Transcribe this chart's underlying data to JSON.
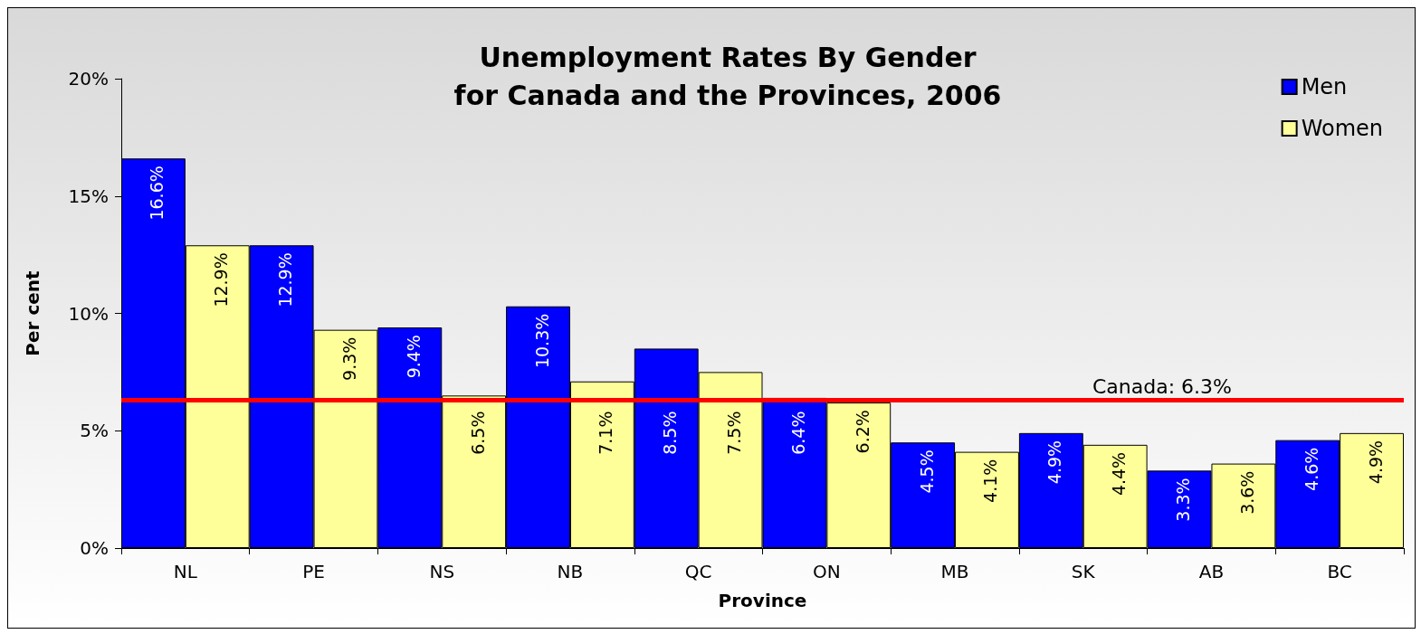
{
  "chart_data": {
    "type": "bar",
    "title": "Unemployment Rates By Gender\nfor Canada and the Provinces, 2006",
    "xlabel": "Province",
    "ylabel": "Per cent",
    "categories": [
      "NL",
      "PE",
      "NS",
      "NB",
      "QC",
      "ON",
      "MB",
      "SK",
      "AB",
      "BC"
    ],
    "series": [
      {
        "name": "Men",
        "color": "#0000ff",
        "values": [
          16.6,
          12.9,
          9.4,
          10.3,
          8.5,
          6.4,
          4.5,
          4.9,
          3.3,
          4.6
        ],
        "value_labels": [
          "16.6%",
          "12.9%",
          "9.4%",
          "10.3%",
          "8.5%",
          "6.4%",
          "4.5%",
          "4.9%",
          "3.3%",
          "4.6%"
        ]
      },
      {
        "name": "Women",
        "color": "#ffff99",
        "values": [
          12.9,
          9.3,
          6.5,
          7.1,
          7.5,
          6.2,
          4.1,
          4.4,
          3.6,
          4.9
        ],
        "value_labels": [
          "12.9%",
          "9.3%",
          "6.5%",
          "7.1%",
          "7.5%",
          "6.2%",
          "4.1%",
          "4.4%",
          "3.6%",
          "4.9%"
        ]
      }
    ],
    "ylim": [
      0,
      20
    ],
    "yticks": [
      {
        "value": 0,
        "label": "0%"
      },
      {
        "value": 5,
        "label": "5%"
      },
      {
        "value": 10,
        "label": "10%"
      },
      {
        "value": 15,
        "label": "15%"
      },
      {
        "value": 20,
        "label": "20%"
      }
    ],
    "ref_lines": [
      {
        "axis": "y",
        "value": 6.3,
        "label": "Canada: 6.3%",
        "color": "#ff0000"
      }
    ],
    "grid": false,
    "legend": "top right"
  }
}
